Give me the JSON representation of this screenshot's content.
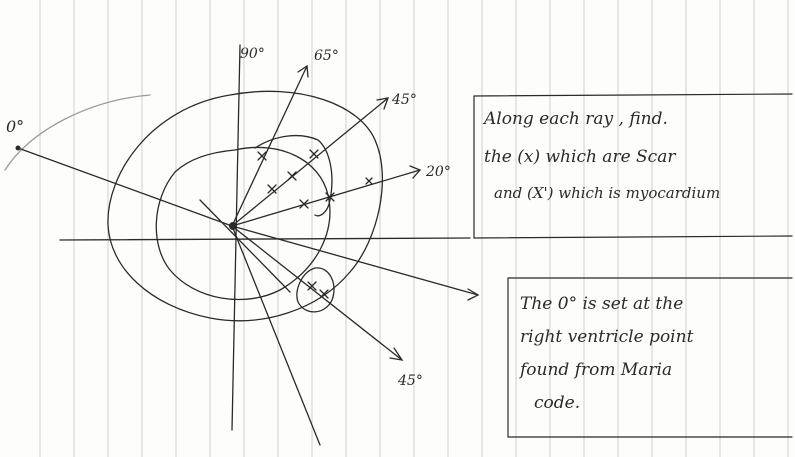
{
  "angle_labels": {
    "zero": "0°",
    "ninety": "90°",
    "sixty_five": "65°",
    "forty_five_top": "45°",
    "twenty": "20°",
    "forty_five_bottom": "45°"
  },
  "note_top": {
    "line1": "Along each ray , find.",
    "line2": "the (x) which are Scar",
    "line3": "and (X') which is myocardium"
  },
  "note_bottom": {
    "line1": "The 0° is set at the",
    "line2": "right ventricle point",
    "line3": "found from Maria",
    "line4": "code."
  },
  "colors": {
    "ink": "#2a2a2a",
    "ruling": "#c9c9c9",
    "paper": "#fdfdfb"
  }
}
